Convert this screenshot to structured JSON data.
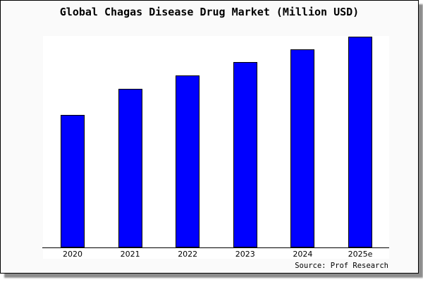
{
  "figure": {
    "background": "#fafafa",
    "plot_background": "#ffffff",
    "border_color": "#000000",
    "shadow_color": "#8c8c8c"
  },
  "chart_data": {
    "type": "bar",
    "title": "Global Chagas Disease Drug Market (Million USD)",
    "categories": [
      "2020",
      "2021",
      "2022",
      "2023",
      "2024",
      "2025e"
    ],
    "values": [
      188,
      225,
      244,
      263,
      281,
      299
    ],
    "value_scale": "relative bar heights in pixels; chart shows no y-axis ticks or gridlines",
    "ylim": [
      0,
      316
    ],
    "bar_color": "#0000ff",
    "bar_border_color": "#000000",
    "xlabel": "",
    "ylabel": "",
    "grid": false,
    "legend": false,
    "source": "Source: Prof Research"
  }
}
